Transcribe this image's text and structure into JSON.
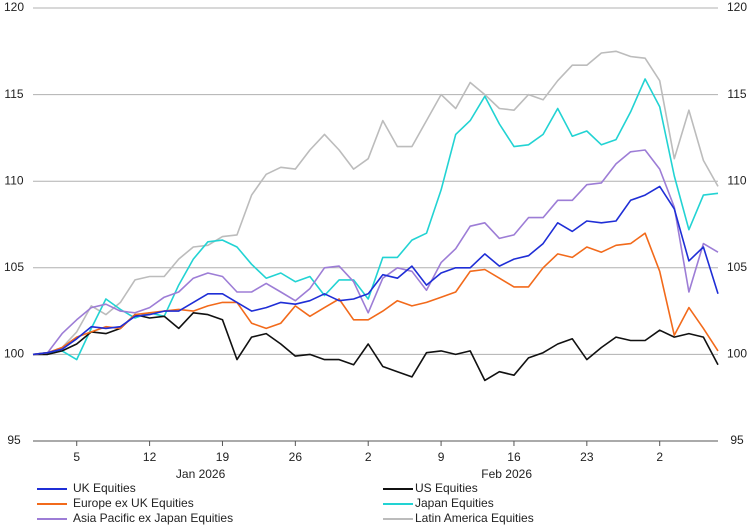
{
  "chart_data": {
    "type": "line",
    "categories": [
      null,
      null,
      null,
      "5",
      null,
      null,
      null,
      null,
      "12",
      null,
      null,
      null,
      null,
      "19",
      null,
      null,
      null,
      null,
      "26",
      null,
      null,
      null,
      null,
      "2",
      null,
      null,
      null,
      null,
      "9",
      null,
      null,
      null,
      null,
      "16",
      null,
      null,
      null,
      null,
      "23",
      null,
      null,
      null,
      null,
      "2",
      null,
      null,
      null,
      null
    ],
    "x_groups": [
      {
        "label": "Jan 2026",
        "first": 1,
        "last": 22
      },
      {
        "label": "Feb 2026",
        "first": 23,
        "last": 42
      }
    ],
    "ylim": [
      95,
      120
    ],
    "yticks": [
      95,
      100,
      105,
      110,
      115,
      120
    ],
    "grid": true,
    "y_labels_both_sides": true,
    "legend": "bottom",
    "series": [
      {
        "name": "UK Equities",
        "color": "#1f2ed6",
        "values": [
          100,
          100.1,
          100.3,
          100.9,
          101.6,
          101.5,
          101.6,
          102.2,
          102.3,
          102.5,
          102.5,
          103.0,
          103.5,
          103.5,
          103.0,
          102.5,
          102.7,
          103.0,
          102.9,
          103.1,
          103.5,
          103.1,
          103.2,
          103.5,
          104.6,
          104.4,
          105.1,
          104.0,
          104.7,
          105.0,
          105.0,
          105.8,
          105.1,
          105.5,
          105.7,
          106.4,
          107.6,
          107.1,
          107.7,
          107.6,
          107.7,
          108.9,
          109.2,
          109.7,
          108.4,
          105.4,
          106.2,
          103.5
        ]
      },
      {
        "name": "Europe ex UK Equities",
        "color": "#f26a1b",
        "values": [
          100,
          100.1,
          100.4,
          101.0,
          101.3,
          101.6,
          101.5,
          102.3,
          102.4,
          102.5,
          102.6,
          102.5,
          102.8,
          103.0,
          103.0,
          101.8,
          101.5,
          101.8,
          102.8,
          102.2,
          102.7,
          103.2,
          102.0,
          102.0,
          102.5,
          103.1,
          102.8,
          103.0,
          103.3,
          103.6,
          104.8,
          104.9,
          104.4,
          103.9,
          103.9,
          105.0,
          105.8,
          105.6,
          106.2,
          105.9,
          106.3,
          106.4,
          107.0,
          104.8,
          101.1,
          102.7,
          101.5,
          100.2
        ]
      },
      {
        "name": "Asia Pacific ex Japan Equities",
        "color": "#9d7dd6",
        "values": [
          100,
          100.1,
          101.2,
          102.0,
          102.7,
          102.9,
          102.5,
          102.4,
          102.7,
          103.3,
          103.6,
          104.4,
          104.7,
          104.5,
          103.6,
          103.6,
          104.1,
          103.6,
          103.1,
          103.8,
          105.0,
          105.1,
          104.2,
          102.4,
          104.4,
          105.0,
          104.8,
          103.7,
          105.3,
          106.1,
          107.4,
          107.6,
          106.7,
          106.9,
          107.9,
          107.9,
          108.9,
          108.9,
          109.8,
          109.9,
          111.0,
          111.7,
          111.8,
          110.7,
          108.5,
          103.6,
          106.4,
          105.9
        ]
      },
      {
        "name": "US Equities",
        "color": "#111111",
        "values": [
          100,
          100.0,
          100.2,
          100.6,
          101.3,
          101.2,
          101.5,
          102.3,
          102.1,
          102.2,
          101.5,
          102.4,
          102.3,
          102.0,
          99.7,
          101.0,
          101.2,
          100.6,
          99.9,
          100.0,
          99.7,
          99.7,
          99.4,
          100.6,
          99.3,
          99.0,
          98.7,
          100.1,
          100.2,
          100.0,
          100.2,
          98.5,
          99.0,
          98.8,
          99.8,
          100.1,
          100.6,
          100.9,
          99.7,
          100.4,
          101.0,
          100.8,
          100.8,
          101.4,
          101.0,
          101.2,
          101.0,
          99.4
        ]
      },
      {
        "name": "Japan Equities",
        "color": "#22d3d3",
        "values": [
          100,
          100.1,
          100.2,
          99.7,
          101.5,
          103.2,
          102.6,
          102.1,
          102.4,
          102.2,
          104.0,
          105.5,
          106.5,
          106.6,
          106.2,
          105.2,
          104.4,
          104.7,
          104.2,
          104.5,
          103.4,
          104.3,
          104.3,
          103.2,
          105.6,
          105.6,
          106.6,
          107.0,
          109.5,
          112.7,
          113.5,
          114.9,
          113.3,
          112.0,
          112.1,
          112.7,
          114.2,
          112.6,
          112.9,
          112.1,
          112.4,
          114.0,
          115.9,
          114.3,
          110.3,
          107.2,
          109.2,
          109.3
        ]
      },
      {
        "name": "Latin America Equities",
        "color": "#bcbcbc",
        "values": [
          100,
          100.1,
          100.4,
          101.3,
          102.8,
          102.3,
          103.0,
          104.3,
          104.5,
          104.5,
          105.5,
          106.2,
          106.3,
          106.8,
          106.9,
          109.2,
          110.4,
          110.8,
          110.7,
          111.8,
          112.7,
          111.8,
          110.7,
          111.3,
          113.5,
          112.0,
          112.0,
          113.5,
          115.0,
          114.2,
          115.7,
          115.0,
          114.2,
          114.1,
          115.0,
          114.7,
          115.8,
          116.7,
          116.7,
          117.4,
          117.5,
          117.2,
          117.1,
          115.8,
          111.3,
          114.1,
          111.2,
          109.7
        ]
      }
    ]
  }
}
